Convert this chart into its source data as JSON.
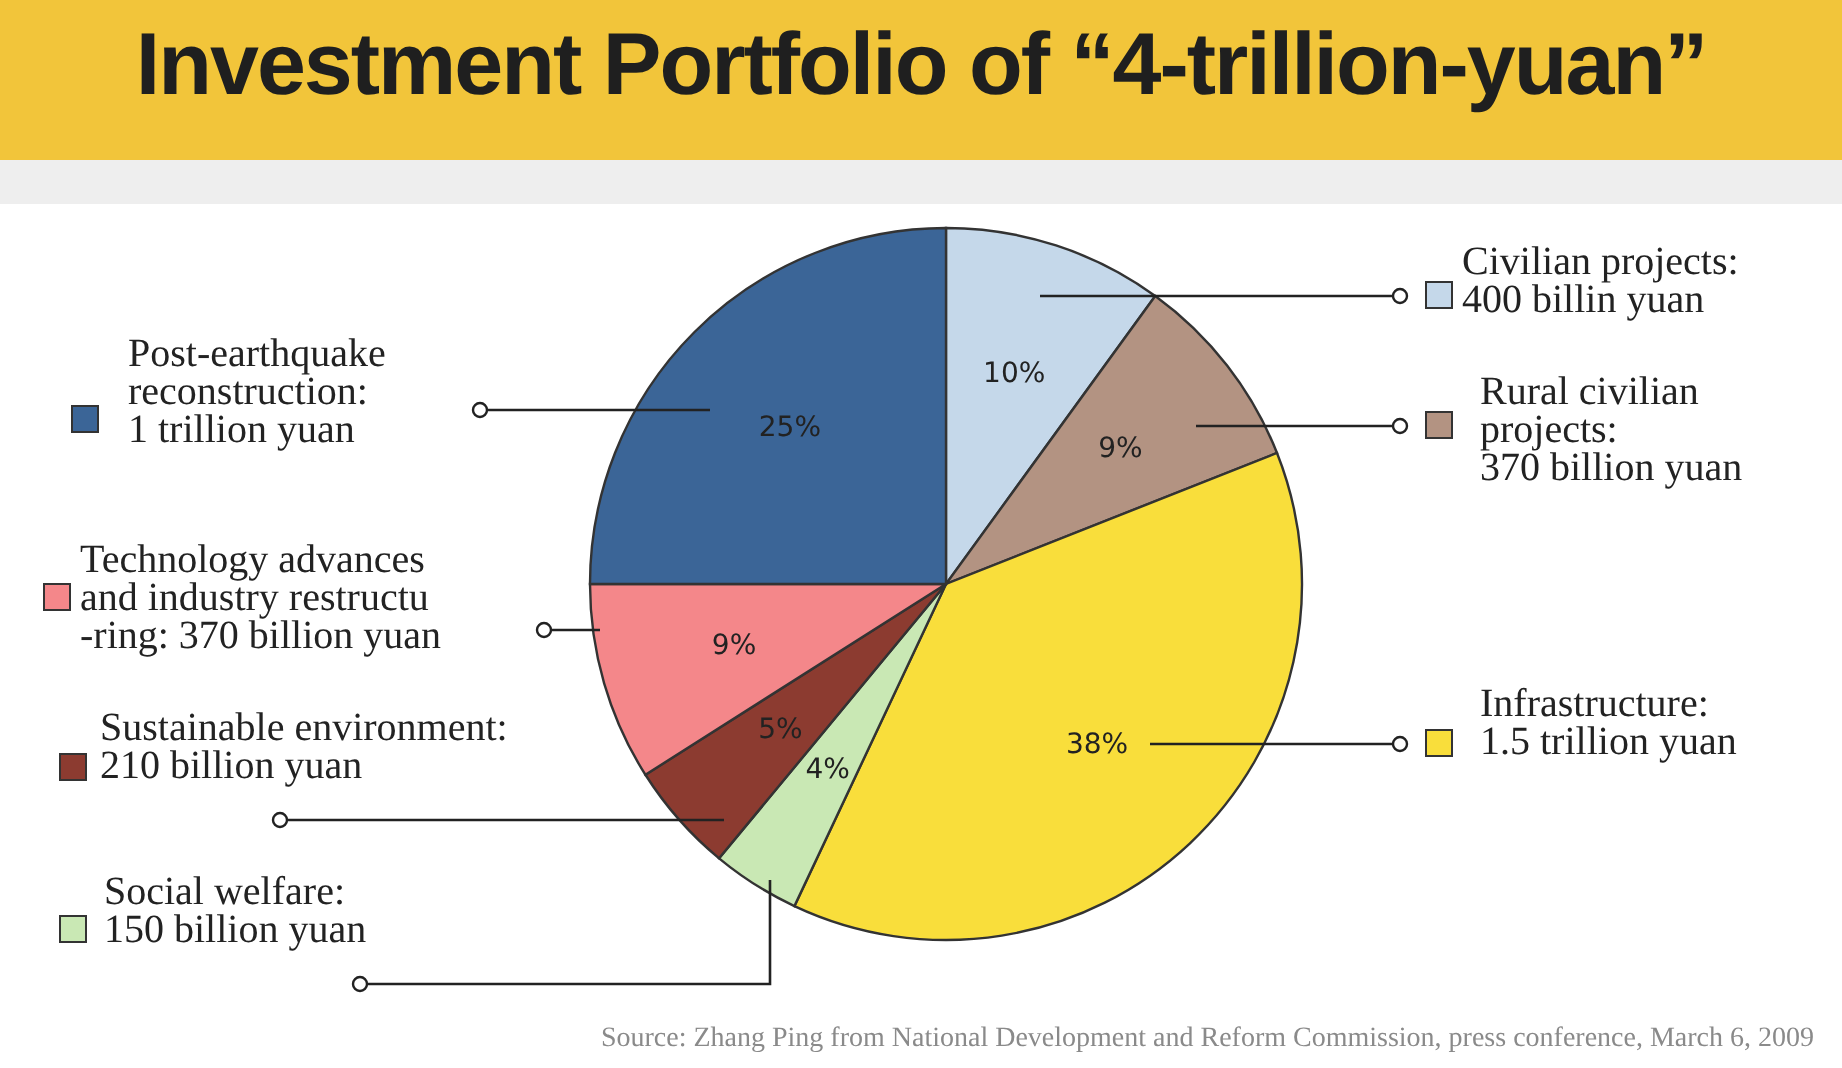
{
  "chart_data": {
    "type": "pie",
    "title": "Investment Portfolio of “4-trillion-yuan”",
    "categories": [
      "Civilian projects:\n400 billin yuan",
      "Rural civilian\nprojects:\n370 billion yuan",
      "Infrastructure:\n1.5 trillion yuan",
      "Social welfare:\n150 billion yuan",
      "Sustainable environment:\n210 billion yuan",
      "Technology advances\nand industry restructu\n-ring: 370 billion yuan",
      "Post-earthquake\nreconstruction:\n1 trillion yuan"
    ],
    "values": [
      10,
      9,
      38,
      4,
      5,
      9,
      25
    ],
    "value_labels": [
      "10%",
      "9%",
      "38%",
      "4%",
      "5%",
      "9%",
      "25%"
    ],
    "colors": [
      "#c5d8ea",
      "#b39382",
      "#f9de3b",
      "#c9e8b4",
      "#8c3b30",
      "#f4878a",
      "#3b6597"
    ],
    "legend": "bottom left",
    "annotations": [
      "Source: Zhang Ping from National Development and Reform Commission, press conference, March 6, 2009"
    ]
  }
}
